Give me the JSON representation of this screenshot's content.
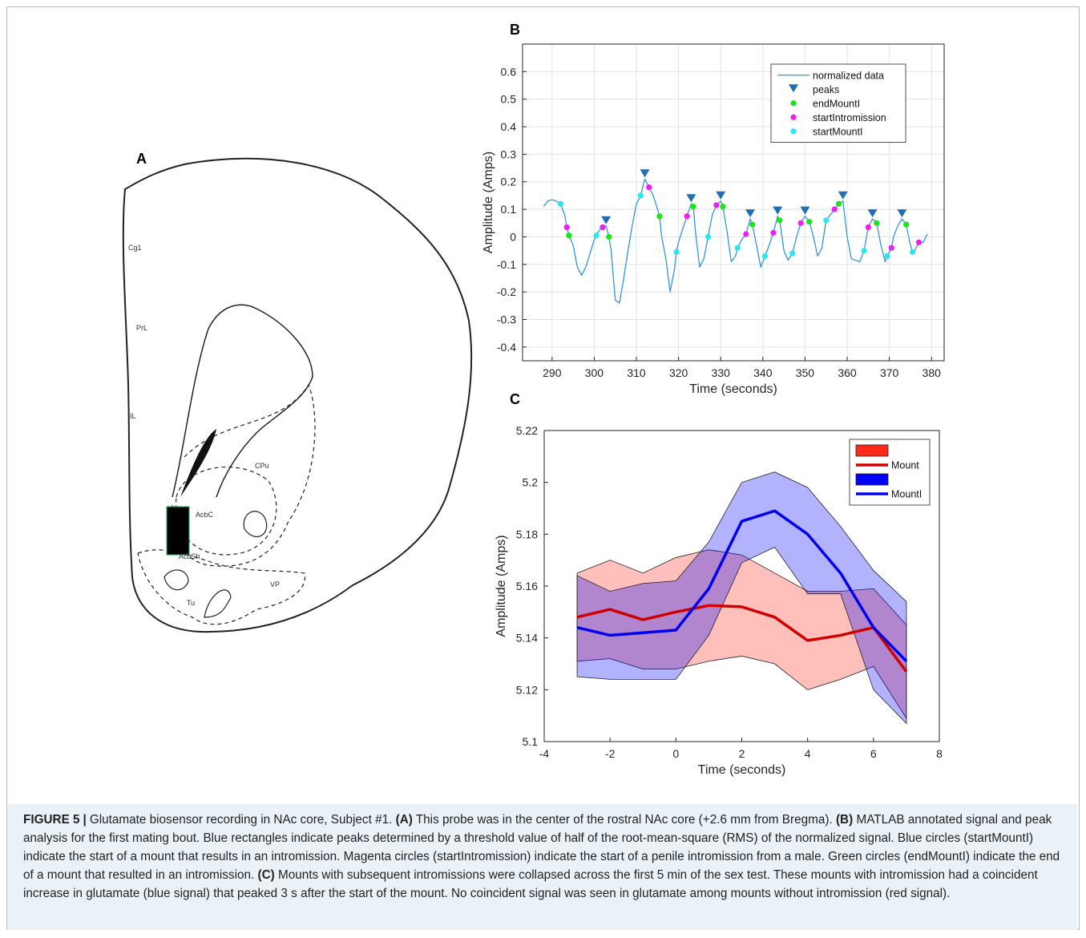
{
  "panel_a": {
    "label": "A",
    "regions": [
      "Cg1",
      "PrL",
      "IL",
      "CPu",
      "AcbC",
      "AcbSh",
      "VP",
      "Tu"
    ]
  },
  "chart_data": [
    {
      "type": "line",
      "panel_label": "B",
      "xlabel": "Time (seconds)",
      "ylabel": "Amplitude (Amps)",
      "grid": true,
      "legend": "upper right",
      "xlim": [
        283,
        383
      ],
      "xticks": [
        290,
        300,
        310,
        320,
        330,
        340,
        350,
        360,
        370,
        380
      ],
      "ylim": [
        -0.45,
        0.7
      ],
      "yticks": [
        -0.4,
        -0.3,
        -0.2,
        -0.1,
        0,
        0.1,
        0.2,
        0.3,
        0.4,
        0.5,
        0.6
      ],
      "series": [
        {
          "name": "normalized data",
          "style": "line",
          "color": "#3596d6",
          "x": [
            288,
            289,
            290,
            291,
            292,
            293,
            293.5,
            294,
            295,
            296,
            297,
            298,
            299,
            300,
            300.5,
            301,
            302,
            302.8,
            303.5,
            304,
            305,
            306,
            307,
            308,
            309,
            310,
            311,
            312,
            313,
            314,
            315,
            315.5,
            316,
            317,
            318,
            319,
            319.5,
            320,
            321,
            322,
            323,
            323.5,
            324,
            325,
            326,
            327,
            328,
            329,
            330,
            330.5,
            331.5,
            332.5,
            333.5,
            334,
            335,
            336,
            337,
            337.5,
            338.5,
            339.5,
            340.5,
            341.5,
            342.5,
            343.5,
            344,
            345,
            346,
            347,
            348,
            349,
            350,
            351,
            352,
            353,
            354,
            355,
            356,
            357,
            358,
            359,
            360,
            361,
            362,
            363,
            364,
            365,
            366,
            367,
            368,
            369,
            369.5,
            370.5,
            371,
            372,
            373,
            374,
            375,
            375.5,
            376,
            377,
            378,
            379
          ],
          "values": [
            0.11,
            0.13,
            0.135,
            0.13,
            0.12,
            0.08,
            0.035,
            0.005,
            -0.03,
            -0.11,
            -0.14,
            -0.11,
            -0.06,
            -0.01,
            0.005,
            0.02,
            0.035,
            0.04,
            0.0,
            -0.05,
            -0.23,
            -0.24,
            -0.15,
            -0.05,
            0.04,
            0.12,
            0.15,
            0.21,
            0.18,
            0.15,
            0.1,
            0.075,
            0.0,
            -0.08,
            -0.2,
            -0.12,
            -0.055,
            -0.02,
            0.03,
            0.075,
            0.12,
            0.11,
            0.02,
            -0.11,
            -0.08,
            0.0,
            0.08,
            0.115,
            0.13,
            0.11,
            0.02,
            -0.09,
            -0.07,
            -0.04,
            -0.01,
            0.01,
            0.065,
            0.045,
            -0.03,
            -0.11,
            -0.07,
            -0.03,
            0.015,
            0.075,
            0.06,
            -0.05,
            -0.085,
            -0.06,
            0.0,
            0.05,
            0.075,
            0.055,
            0.0,
            -0.07,
            -0.04,
            0.06,
            0.08,
            0.1,
            0.12,
            0.13,
            0.0,
            -0.08,
            -0.085,
            -0.09,
            -0.05,
            0.035,
            0.065,
            0.05,
            -0.03,
            -0.09,
            -0.07,
            -0.04,
            0.0,
            0.04,
            0.065,
            0.045,
            -0.03,
            -0.055,
            -0.05,
            -0.02,
            -0.02,
            0.01
          ]
        },
        {
          "name": "peaks",
          "style": "marker",
          "marker": "triangle-down",
          "color": "#1f6fb5",
          "x": [
            302.8,
            312,
            323,
            330,
            337,
            343.5,
            350,
            359,
            366,
            373
          ],
          "values": [
            0.04,
            0.21,
            0.12,
            0.13,
            0.065,
            0.075,
            0.075,
            0.13,
            0.065,
            0.065
          ]
        },
        {
          "name": "endMountI",
          "style": "marker",
          "marker": "circle",
          "color": "#19e619",
          "x": [
            294,
            303.5,
            315.5,
            323.5,
            330.5,
            337.5,
            344,
            351,
            358,
            367,
            374
          ],
          "values": [
            0.005,
            0.0,
            0.075,
            0.11,
            0.11,
            0.045,
            0.06,
            0.055,
            0.12,
            0.05,
            0.045
          ]
        },
        {
          "name": "startIntromission",
          "style": "marker",
          "marker": "circle",
          "color": "#f01ef0",
          "x": [
            293.5,
            302,
            313,
            322,
            329,
            336,
            342.5,
            349,
            357,
            365,
            370.5,
            377
          ],
          "values": [
            0.035,
            0.035,
            0.18,
            0.075,
            0.115,
            0.01,
            0.015,
            0.05,
            0.1,
            0.035,
            -0.04,
            -0.02
          ]
        },
        {
          "name": "startMountI",
          "style": "marker",
          "marker": "circle",
          "color": "#2ee6f0",
          "x": [
            292,
            300.5,
            311,
            319.5,
            327,
            334,
            340.5,
            347,
            355,
            364,
            369.5,
            375.5
          ],
          "values": [
            0.12,
            0.005,
            0.15,
            -0.055,
            0.0,
            -0.04,
            -0.07,
            -0.06,
            0.06,
            -0.05,
            -0.07,
            -0.055
          ]
        }
      ]
    },
    {
      "type": "line",
      "panel_label": "C",
      "xlabel": "Time (seconds)",
      "ylabel": "Amplitude (Amps)",
      "grid": false,
      "legend": "upper right",
      "xlim": [
        -4,
        8
      ],
      "xticks": [
        -4,
        -2,
        0,
        2,
        4,
        6,
        8
      ],
      "ylim": [
        5.1,
        5.22
      ],
      "yticks": [
        5.1,
        5.12,
        5.14,
        5.16,
        5.18,
        5.2,
        5.22
      ],
      "x": [
        -3,
        -2,
        -1,
        0,
        1,
        2,
        3,
        4,
        5,
        6,
        7
      ],
      "series": [
        {
          "name": "Mount",
          "style": "line",
          "color": "#d00000",
          "band_color": "#ff2a1a",
          "values": [
            5.148,
            5.151,
            5.147,
            5.15,
            5.1525,
            5.152,
            5.148,
            5.139,
            5.141,
            5.144,
            5.127
          ],
          "band_upper": [
            5.165,
            5.17,
            5.165,
            5.171,
            5.174,
            5.172,
            5.165,
            5.158,
            5.158,
            5.159,
            5.145
          ],
          "band_lower": [
            5.131,
            5.132,
            5.128,
            5.128,
            5.131,
            5.133,
            5.13,
            5.12,
            5.124,
            5.129,
            5.109
          ]
        },
        {
          "name": "MountI",
          "style": "line",
          "color": "#0000ee",
          "band_color": "#0000ff",
          "values": [
            5.144,
            5.141,
            5.142,
            5.143,
            5.159,
            5.185,
            5.189,
            5.18,
            5.165,
            5.144,
            5.131
          ],
          "band_upper": [
            5.164,
            5.158,
            5.161,
            5.162,
            5.177,
            5.2,
            5.204,
            5.198,
            5.183,
            5.166,
            5.154
          ],
          "band_lower": [
            5.125,
            5.124,
            5.124,
            5.124,
            5.141,
            5.169,
            5.175,
            5.157,
            5.157,
            5.12,
            5.107
          ]
        }
      ]
    }
  ],
  "caption": {
    "label": "FIGURE 5",
    "separator": "|",
    "intro": "Glutamate biosensor recording in NAc core, Subject #1.",
    "panels": [
      {
        "tag": "(A)",
        "text": "This probe was in the center of the rostral NAc core (+2.6 mm from Bregma)."
      },
      {
        "tag": "(B)",
        "text": "MATLAB annotated signal and peak analysis for the first mating bout. Blue rectangles indicate peaks determined by a threshold value of half of the root-mean-square (RMS) of the normalized signal. Blue circles (startMountI) indicate the start of a mount that results in an intromission. Magenta circles (startIntromission) indicate the start of a penile intromission from a male. Green circles (endMountI) indicate the end of a mount that resulted in an intromission."
      },
      {
        "tag": "(C)",
        "text": "Mounts with subsequent intromissions were collapsed across the first 5 min of the sex test. These mounts with intromission had a coincident increase in glutamate (blue signal) that peaked 3 s after the start of the mount. No coincident signal was seen in glutamate among mounts without intromission (red signal)."
      }
    ]
  }
}
